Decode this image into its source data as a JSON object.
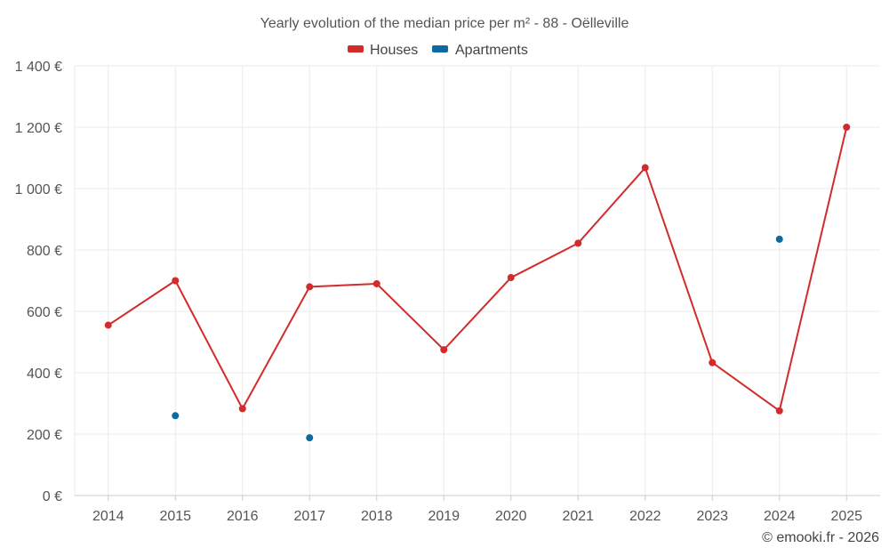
{
  "chart_data": {
    "type": "line",
    "title": "Yearly evolution of the median price per m² - 88 - Oëlleville",
    "categories": [
      "2014",
      "2015",
      "2016",
      "2017",
      "2018",
      "2019",
      "2020",
      "2021",
      "2022",
      "2023",
      "2024",
      "2025"
    ],
    "series": [
      {
        "name": "Houses",
        "color": "#d32b2b",
        "values": [
          555,
          700,
          283,
          680,
          690,
          475,
          710,
          822,
          1068,
          433,
          276,
          1200
        ]
      },
      {
        "name": "Apartments",
        "color": "#0d6aa0",
        "values": [
          null,
          260,
          null,
          188,
          null,
          null,
          null,
          null,
          null,
          null,
          835,
          null
        ]
      }
    ],
    "y_ticks": [
      "0 €",
      "200 €",
      "400 €",
      "600 €",
      "800 €",
      "1 000 €",
      "1 200 €",
      "1 400 €"
    ],
    "ylim": [
      0,
      1400
    ],
    "ystep": 200,
    "xlabel": "",
    "ylabel": "",
    "legend_position": "top-center",
    "grid": true
  },
  "credit": "© emooki.fr - 2026"
}
